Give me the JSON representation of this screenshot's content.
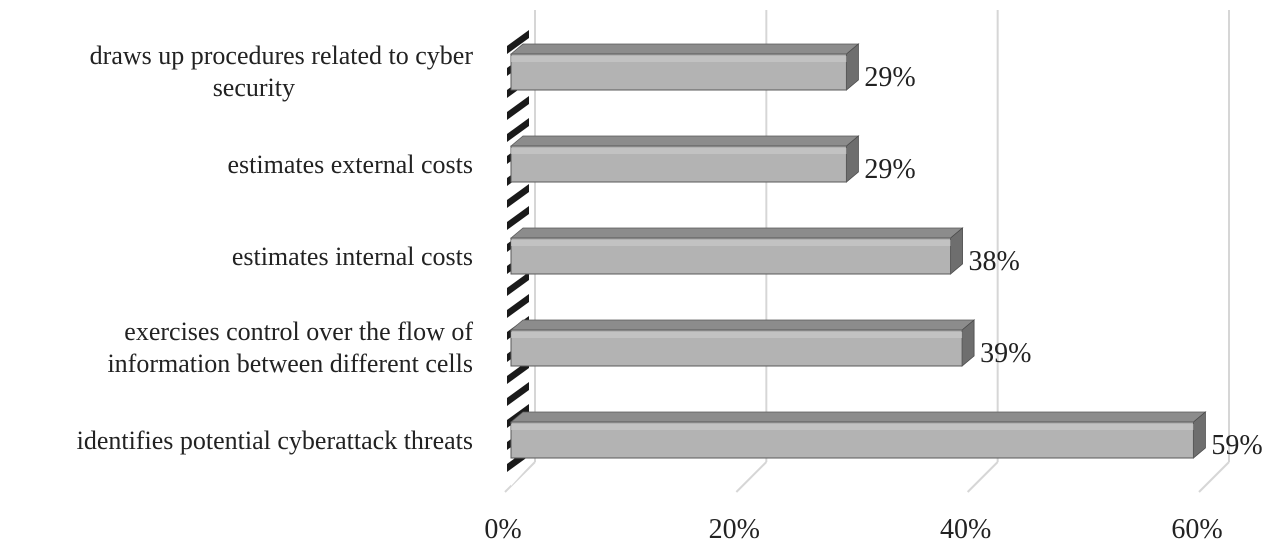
{
  "chart_data": {
    "type": "bar",
    "orientation": "horizontal",
    "style": "3d",
    "categories": [
      [
        "draws up procedures related to cyber",
        "security"
      ],
      [
        "estimates external costs"
      ],
      [
        "estimates internal costs"
      ],
      [
        "exercises control over the flow of",
        "information between different cells"
      ],
      [
        "identifies potential cyberattack threats"
      ]
    ],
    "values": [
      29,
      29,
      38,
      39,
      59
    ],
    "data_labels": [
      "29%",
      "29%",
      "38%",
      "39%",
      "59%"
    ],
    "xlim": [
      0,
      60
    ],
    "xticks": [
      0,
      20,
      40,
      60
    ],
    "xtick_labels": [
      "0%",
      "20%",
      "40%",
      "60%"
    ],
    "grid": true,
    "legend": "none",
    "colors": {
      "bar_front": "#b3b3b3",
      "bar_top": "#8c8c8c",
      "bar_side": "#6e6e6e",
      "grid": "#d6d6d6",
      "floor": "#c8c8c8"
    }
  }
}
